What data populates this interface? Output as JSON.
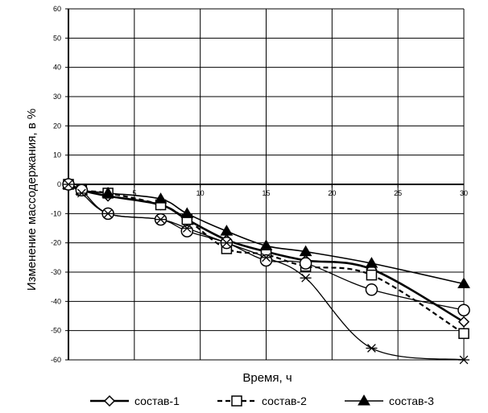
{
  "chart_data": {
    "type": "line",
    "xlabel": "Время, ч",
    "ylabel": "Изменение массодержания, в %",
    "xlim": [
      0,
      30
    ],
    "ylim": [
      -60,
      60
    ],
    "x_ticks": [
      5,
      10,
      15,
      20,
      25,
      30
    ],
    "y_ticks": [
      60,
      50,
      40,
      30,
      20,
      10,
      0,
      -10,
      -20,
      -30,
      -40,
      -50,
      -60
    ],
    "grid": true,
    "legend_position": "bottom",
    "series": [
      {
        "name": "состав-1",
        "marker": "diamond",
        "dash": "solid",
        "x": [
          0,
          1,
          3,
          7,
          9,
          12,
          15,
          18,
          23,
          30
        ],
        "y": [
          0,
          -2,
          -4,
          -7,
          -12,
          -19,
          -23,
          -26,
          -29,
          -47
        ]
      },
      {
        "name": "состав-2",
        "marker": "square",
        "dash": "dashed",
        "x": [
          0,
          1,
          3,
          7,
          9,
          12,
          15,
          18,
          23,
          30
        ],
        "y": [
          0,
          -2,
          -3,
          -7,
          -12,
          -22,
          -24,
          -28,
          -31,
          -51
        ]
      },
      {
        "name": "состав-3",
        "marker": "triangle",
        "dash": "solid",
        "x": [
          0,
          1,
          3,
          7,
          9,
          12,
          15,
          18,
          23,
          30
        ],
        "y": [
          0,
          -2,
          -3,
          -5,
          -10,
          -16,
          -21,
          -23,
          -27,
          -34
        ]
      },
      {
        "name": "",
        "marker": "circle",
        "dash": "solid",
        "x": [
          0,
          1,
          3,
          7,
          9,
          12,
          15,
          18,
          23,
          30
        ],
        "y": [
          0,
          -2,
          -10,
          -12,
          -16,
          -20,
          -26,
          -27,
          -36,
          -43
        ]
      },
      {
        "name": "",
        "marker": "star",
        "dash": "solid",
        "x": [
          0,
          1,
          3,
          7,
          9,
          12,
          15,
          18,
          23,
          30
        ],
        "y": [
          0,
          -3,
          -10,
          -12,
          -15,
          -20,
          -25,
          -32,
          -56,
          -60
        ]
      }
    ]
  }
}
